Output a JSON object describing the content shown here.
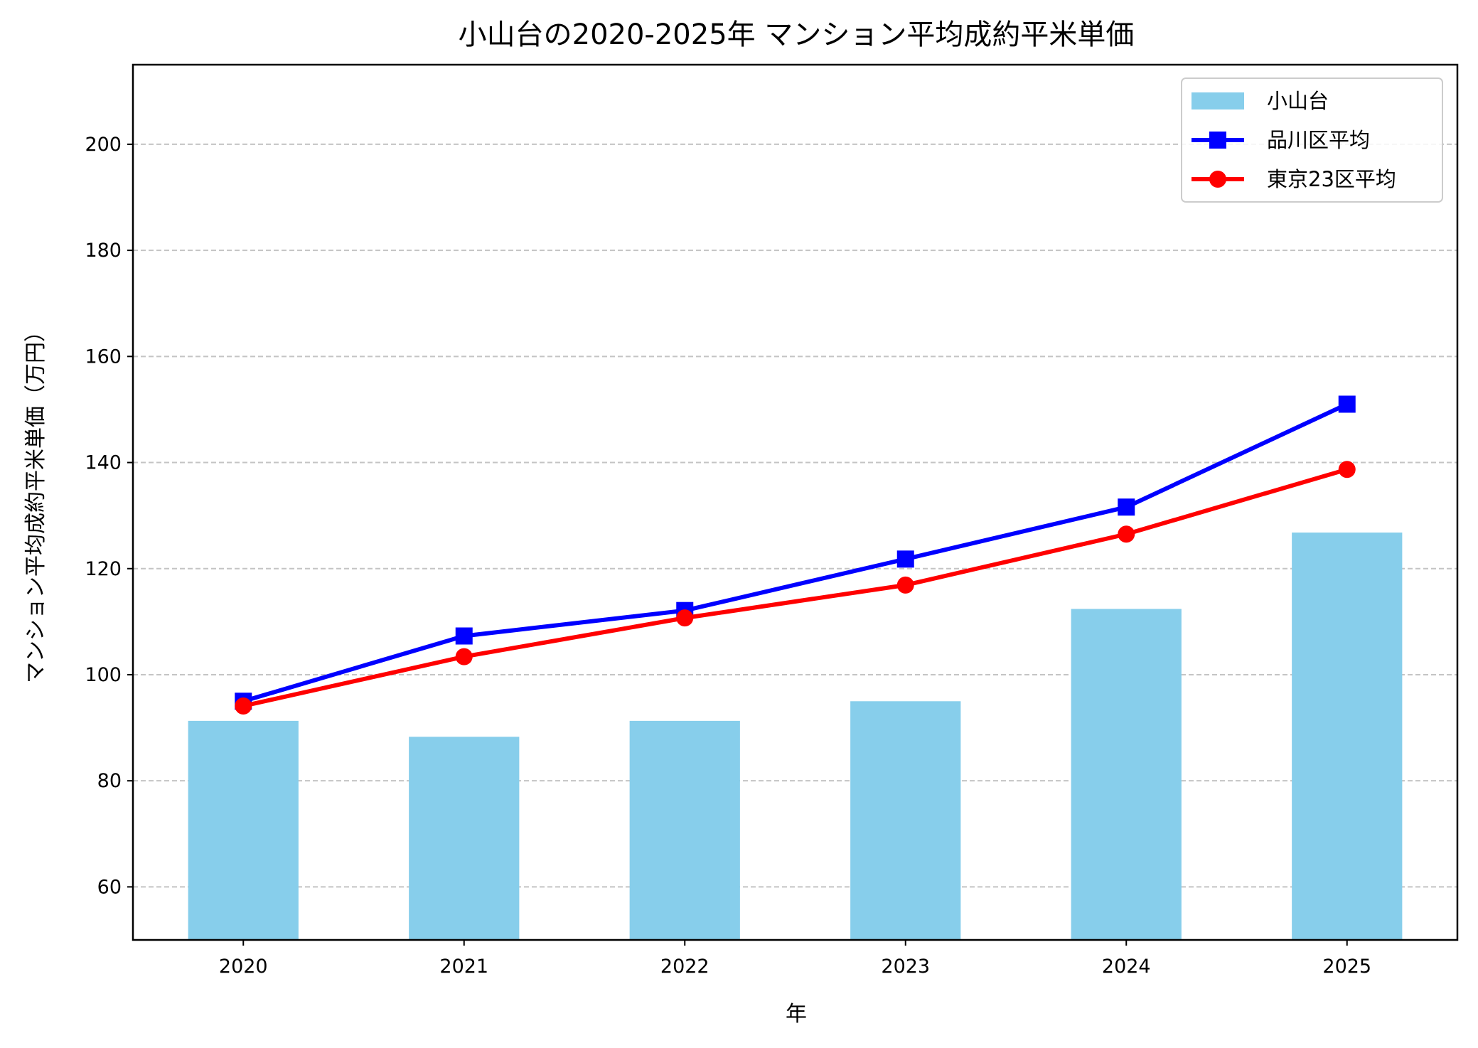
{
  "chart_data": {
    "type": "bar+line",
    "title": "小山台の2020-2025年 マンション平均成約平米単価",
    "xlabel": "年",
    "ylabel": "マンション平均成約平米単価（万円）",
    "categories": [
      "2020",
      "2021",
      "2022",
      "2023",
      "2024",
      "2025"
    ],
    "ylim": [
      50,
      215
    ],
    "yticks": [
      60,
      80,
      100,
      120,
      140,
      160,
      180,
      200
    ],
    "grid": "y-dashed",
    "legend_position": "top-right",
    "series": [
      {
        "name": "小山台",
        "kind": "bar",
        "color": "#87CEEB",
        "values": [
          91.3,
          88.3,
          91.3,
          95.0,
          112.4,
          126.8
        ]
      },
      {
        "name": "品川区平均",
        "kind": "line",
        "marker": "square",
        "color": "#0000FF",
        "values": [
          95.0,
          107.3,
          112.1,
          121.8,
          131.6,
          151.0
        ]
      },
      {
        "name": "東京23区平均",
        "kind": "line",
        "marker": "circle",
        "color": "#FF0000",
        "values": [
          94.1,
          103.4,
          110.7,
          116.9,
          126.5,
          138.7
        ]
      }
    ]
  }
}
